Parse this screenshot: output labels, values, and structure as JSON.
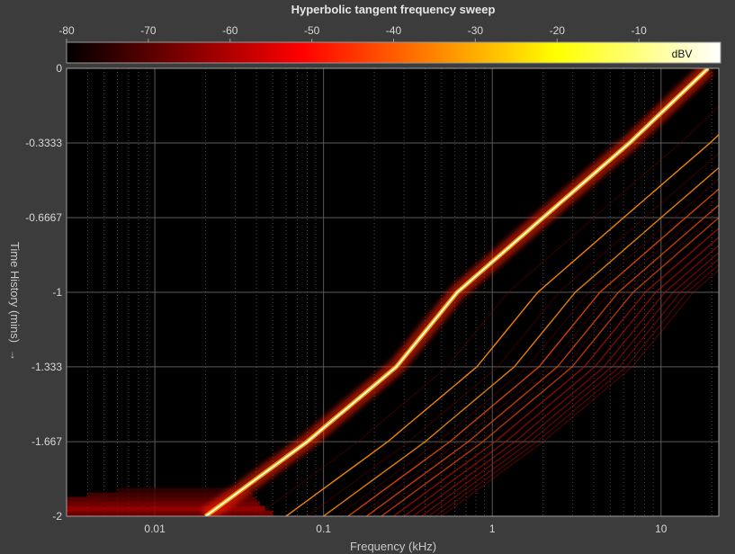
{
  "chart_data": {
    "type": "heatmap",
    "title": "Hyperbolic tangent frequency sweep",
    "xlabel": "Frequency (kHz)",
    "ylabel": "Time History (mins)",
    "x_scale": "log",
    "xlim": [
      0.003,
      22
    ],
    "x_ticks": [
      0.01,
      0.1,
      1,
      10
    ],
    "x_tick_labels": [
      "0.01",
      "0.1",
      "1",
      "10"
    ],
    "ylim": [
      -2,
      0
    ],
    "y_ticks": [
      0,
      -0.3333,
      -0.6667,
      -1,
      -1.333,
      -1.667,
      -2
    ],
    "y_tick_labels": [
      "0",
      "-0.3333",
      "-0.6667",
      "-1",
      "-1.333",
      "-1.667",
      "-2"
    ],
    "colorbar": {
      "label": "dBV",
      "range": [
        -80,
        0
      ],
      "ticks": [
        -80,
        -70,
        -60,
        -50,
        -40,
        -30,
        -20,
        -10
      ],
      "tick_labels": [
        "-80",
        "-70",
        "-60",
        "-50",
        "-40",
        "-30",
        "-20",
        "-10"
      ],
      "colormap": "hot"
    },
    "grid": true,
    "fundamental_sweep": {
      "time_mins": [
        -2,
        -1.667,
        -1.333,
        -1,
        -0.6667,
        -0.3333,
        0
      ],
      "frequency_khz": [
        0.02,
        0.08,
        0.27,
        0.62,
        2.0,
        6.5,
        19
      ]
    },
    "harmonic_orders": [
      3,
      5,
      7,
      9,
      11,
      13,
      15,
      17,
      19,
      21,
      23,
      25
    ],
    "colors": {
      "background": "#000000",
      "figure_bg": "#3c3c3c",
      "grid": "#5a5a5a",
      "text": "#d8d8d8"
    }
  }
}
